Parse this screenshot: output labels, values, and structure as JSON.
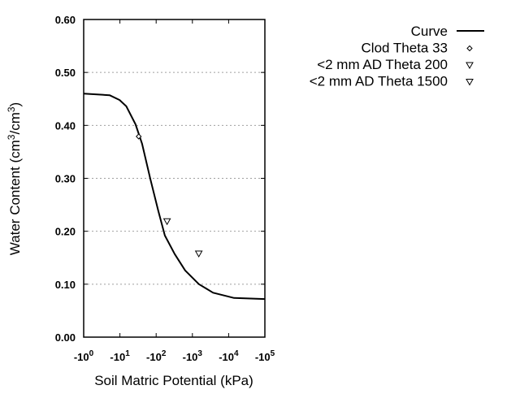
{
  "chart_data": {
    "type": "line",
    "xlabel": "Soil Matric Potential (kPa)",
    "ylabel": {
      "pre": "Water Content (cm",
      "sup1": "3",
      "mid": "/cm",
      "sup2": "3",
      "post": ")"
    },
    "x_scale": "log",
    "xlim": [
      1,
      100000
    ],
    "ylim": [
      0,
      0.6
    ],
    "grid": "horizontal dotted",
    "legend_placement": "right",
    "x_ticks": [
      {
        "value": 1,
        "base": "-10",
        "exp": "0"
      },
      {
        "value": 10,
        "base": "-10",
        "exp": "1"
      },
      {
        "value": 100,
        "base": "-10",
        "exp": "2"
      },
      {
        "value": 1000,
        "base": "-10",
        "exp": "3"
      },
      {
        "value": 10000,
        "base": "-10",
        "exp": "4"
      },
      {
        "value": 100000,
        "base": "-10",
        "exp": "5"
      }
    ],
    "y_ticks": [
      {
        "value": 0.0,
        "label": "0.00"
      },
      {
        "value": 0.1,
        "label": "0.10"
      },
      {
        "value": 0.2,
        "label": "0.20"
      },
      {
        "value": 0.3,
        "label": "0.30"
      },
      {
        "value": 0.4,
        "label": "0.40"
      },
      {
        "value": 0.5,
        "label": "0.50"
      },
      {
        "value": 0.6,
        "label": "0.60"
      }
    ],
    "series": [
      {
        "name": "Curve",
        "style": "line",
        "color": "#000000",
        "x": [
          1,
          5.2,
          9.8,
          15,
          27,
          41,
          69,
          115,
          174,
          324,
          631,
          1514,
          3715,
          14125,
          100000
        ],
        "y": [
          0.46,
          0.457,
          0.448,
          0.436,
          0.402,
          0.365,
          0.299,
          0.238,
          0.192,
          0.157,
          0.126,
          0.1,
          0.084,
          0.074,
          0.072
        ]
      },
      {
        "name": "Clod Theta 33",
        "style": "diamond",
        "x": [
          33
        ],
        "y": [
          0.379
        ]
      },
      {
        "name": "<2 mm AD Theta 200",
        "style": "triangle-down",
        "x": [
          200
        ],
        "y": [
          0.219
        ]
      },
      {
        "name": "<2 mm AD Theta 1500",
        "style": "triangle-down",
        "x": [
          1500
        ],
        "y": [
          0.158
        ]
      }
    ]
  }
}
